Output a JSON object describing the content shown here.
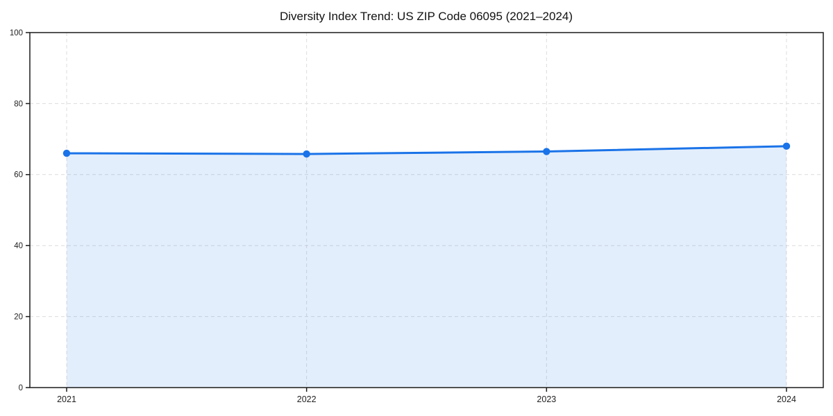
{
  "chart_data": {
    "type": "area",
    "title": "Diversity Index Trend: US ZIP Code 06095 (2021–2024)",
    "categories": [
      "2021",
      "2022",
      "2023",
      "2024"
    ],
    "x": [
      2021,
      2022,
      2023,
      2024
    ],
    "series": [
      {
        "name": "Diversity Index",
        "values": [
          66.0,
          65.8,
          66.5,
          68.0
        ]
      }
    ],
    "xlabel": "",
    "ylabel": "",
    "ylim": [
      0,
      100
    ],
    "yticks": [
      0,
      20,
      40,
      60,
      80,
      100
    ],
    "ytick_labels": [
      "0",
      "20",
      "40",
      "60",
      "80",
      "100"
    ],
    "grid": true,
    "grid_style": "dashed",
    "legend": false,
    "colors": {
      "line": "#1a73e8",
      "marker": "#1a73e8",
      "fill": "#1a73e8",
      "fill_opacity": 0.12,
      "grid": "#dcdcdc",
      "axis": "#1a1a1a",
      "tick_label": "#222222",
      "title": "#111111",
      "background": "#ffffff"
    }
  }
}
